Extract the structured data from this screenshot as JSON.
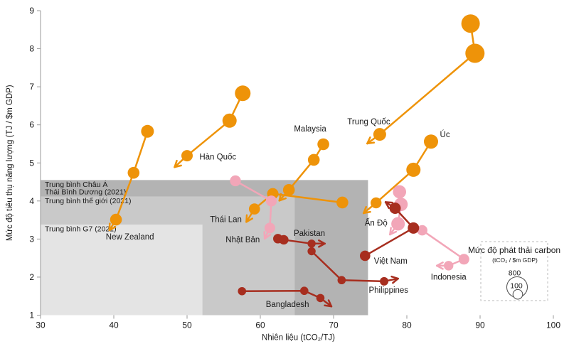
{
  "chart_data": {
    "type": "scatter",
    "title": "",
    "xlabel": "Nhiên liệu (tCO₂/TJ)",
    "ylabel": "Mức độ tiêu thụ năng lượng (TJ / $m GDP)",
    "xlim": [
      30,
      100
    ],
    "ylim": [
      1,
      9
    ],
    "xticks": [
      30,
      40,
      50,
      60,
      70,
      80,
      90,
      100
    ],
    "yticks": [
      1,
      2,
      3,
      4,
      5,
      6,
      7,
      8,
      9
    ],
    "grid": false,
    "colors": {
      "orange": "#EE9309",
      "pink": "#F2A6B8",
      "dark_red": "#A72E1F"
    },
    "reference_bands": [
      {
        "id": "asia-pacific-average",
        "label_lines": [
          "Trung bình Châu Á",
          "Thái Bình Dương (2021)"
        ],
        "x_max": 74.7,
        "y_max": 4.55,
        "color": "#b3b3b3"
      },
      {
        "id": "world-average",
        "label_lines": [
          "Trung bình thế giới (2021)"
        ],
        "x_max": 64.7,
        "y_max": 4.12,
        "color": "#c9c9c9"
      },
      {
        "id": "g7-average",
        "label_lines": [
          "Trung bình G7 (2021)"
        ],
        "x_max": 52.1,
        "y_max": 3.38,
        "color": "#e4e4e4"
      }
    ],
    "series": [
      {
        "name": "Trung Quốc",
        "color": "#EE9309",
        "points": [
          {
            "x": 88.7,
            "y": 8.66,
            "r": 13.0
          },
          {
            "x": 89.3,
            "y": 7.88,
            "r": 13.5
          },
          {
            "x": 76.3,
            "y": 5.75,
            "r": 9.0
          }
        ],
        "arrow_to": {
          "x": 74.6,
          "y": 5.51
        },
        "label": {
          "x": 74.8,
          "y": 6.09
        }
      },
      {
        "name": "Hàn Quốc",
        "color": "#EE9309",
        "points": [
          {
            "x": 57.6,
            "y": 6.83,
            "r": 11.0
          },
          {
            "x": 55.8,
            "y": 6.11,
            "r": 10.0
          },
          {
            "x": 50.0,
            "y": 5.19,
            "r": 8.0
          }
        ],
        "arrow_to": {
          "x": 48.3,
          "y": 4.89
        },
        "label": {
          "x": 54.2,
          "y": 5.16
        }
      },
      {
        "name": "Malaysia",
        "color": "#EE9309",
        "points": [
          {
            "x": 68.6,
            "y": 5.49,
            "r": 8.3
          },
          {
            "x": 67.3,
            "y": 5.08,
            "r": 8.3
          },
          {
            "x": 63.9,
            "y": 4.29,
            "r": 8.3
          }
        ],
        "arrow_to": {
          "x": 62.6,
          "y": 4.01
        },
        "label": {
          "x": 66.8,
          "y": 5.9
        }
      },
      {
        "name": "Úc",
        "color": "#EE9309",
        "points": [
          {
            "x": 83.3,
            "y": 5.56,
            "r": 10.0
          },
          {
            "x": 80.9,
            "y": 4.82,
            "r": 10.0
          },
          {
            "x": 75.8,
            "y": 3.95,
            "r": 7.7
          }
        ],
        "arrow_to": {
          "x": 74.1,
          "y": 3.68
        },
        "label": {
          "x": 85.2,
          "y": 5.75
        }
      },
      {
        "name": "New Zealand",
        "color": "#EE9309",
        "points": [
          {
            "x": 44.6,
            "y": 5.83,
            "r": 9.0
          },
          {
            "x": 42.7,
            "y": 4.74,
            "r": 8.3
          },
          {
            "x": 40.3,
            "y": 3.51,
            "r": 8.3
          }
        ],
        "arrow_to": {
          "x": 39.4,
          "y": 3.23
        },
        "label": {
          "x": 42.2,
          "y": 3.06
        }
      },
      {
        "name": "Thái Lan",
        "color": "#EE9309",
        "points": [
          {
            "x": 71.2,
            "y": 3.96,
            "r": 8.3
          },
          {
            "x": 61.7,
            "y": 4.19,
            "r": 8.0
          },
          {
            "x": 59.2,
            "y": 3.79,
            "r": 7.8
          }
        ],
        "arrow_to": {
          "x": 58.1,
          "y": 3.45
        },
        "label": {
          "x": 55.3,
          "y": 3.52
        }
      },
      {
        "name": "Nhật Bản",
        "color": "#F2A6B8",
        "points": [
          {
            "x": 56.6,
            "y": 4.53,
            "r": 7.7
          },
          {
            "x": 61.5,
            "y": 4.0,
            "r": 7.7
          },
          {
            "x": 61.3,
            "y": 3.29,
            "r": 7.5
          }
        ],
        "arrow_to": {
          "x": 60.6,
          "y": 3.01
        },
        "label": {
          "x": 57.6,
          "y": 2.99
        }
      },
      {
        "name": "Ấn Độ",
        "color": "#F2A6B8",
        "points": [
          {
            "x": 79.0,
            "y": 4.24,
            "r": 9.3
          },
          {
            "x": 79.2,
            "y": 3.91,
            "r": 9.5
          },
          {
            "x": 78.8,
            "y": 3.4,
            "r": 9.5
          }
        ],
        "arrow_to": {
          "x": 77.7,
          "y": 3.12
        },
        "label": {
          "x": 75.8,
          "y": 3.43
        }
      },
      {
        "name": "Indonesia",
        "color": "#F2A6B8",
        "points": [
          {
            "x": 82.1,
            "y": 3.23,
            "r": 7.3
          },
          {
            "x": 87.8,
            "y": 2.47,
            "r": 7.5
          },
          {
            "x": 85.7,
            "y": 2.3,
            "r": 6.7
          }
        ],
        "arrow_to": {
          "x": 84.1,
          "y": 2.3
        },
        "label": {
          "x": 85.7,
          "y": 2.01
        }
      },
      {
        "name": "Việt Nam",
        "color": "#A72E1F",
        "points": [
          {
            "x": 74.3,
            "y": 2.56,
            "r": 7.3
          },
          {
            "x": 80.9,
            "y": 3.29,
            "r": 8.0
          },
          {
            "x": 78.4,
            "y": 3.81,
            "r": 8.0
          }
        ],
        "arrow_to": {
          "x": 77.1,
          "y": 3.97
        },
        "label": {
          "x": 77.8,
          "y": 2.43
        }
      },
      {
        "name": "Pakistan",
        "color": "#A72E1F",
        "points": [
          {
            "x": 62.4,
            "y": 3.01,
            "r": 6.7
          },
          {
            "x": 63.2,
            "y": 2.98,
            "r": 6.7
          },
          {
            "x": 67.0,
            "y": 2.88,
            "r": 5.7
          }
        ],
        "arrow_to": {
          "x": 68.8,
          "y": 2.88
        },
        "label": {
          "x": 66.7,
          "y": 3.16
        }
      },
      {
        "name": "Philippines",
        "color": "#A72E1F",
        "points": [
          {
            "x": 67.0,
            "y": 2.68,
            "r": 5.7
          },
          {
            "x": 71.1,
            "y": 1.92,
            "r": 5.8
          },
          {
            "x": 76.9,
            "y": 1.89,
            "r": 6.0
          }
        ],
        "arrow_to": {
          "x": 78.8,
          "y": 1.96
        },
        "label": {
          "x": 77.5,
          "y": 1.66
        }
      },
      {
        "name": "Bangladesh",
        "color": "#A72E1F",
        "points": [
          {
            "x": 57.5,
            "y": 1.63,
            "r": 5.8
          },
          {
            "x": 66.0,
            "y": 1.64,
            "r": 5.8
          },
          {
            "x": 68.2,
            "y": 1.45,
            "r": 5.8
          }
        ],
        "arrow_to": {
          "x": 69.7,
          "y": 1.23
        },
        "label": {
          "x": 63.7,
          "y": 1.29
        }
      }
    ],
    "legend": {
      "title": "Mức độ phát thải carbon",
      "subtitle": "(tCO₂ / $m GDP)",
      "sizes": [
        {
          "label": "800",
          "r": 14.5
        },
        {
          "label": "100",
          "r": 6.8
        }
      ]
    }
  }
}
